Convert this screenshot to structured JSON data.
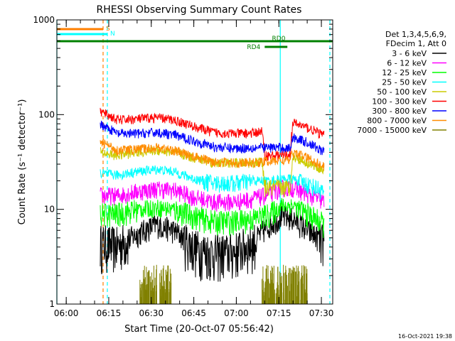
{
  "chart_data": {
    "type": "line",
    "title": "RHESSI Observing Summary Count Rates",
    "xlabel": "Start Time (20-Oct-07 05:56:42)",
    "ylabel": "Count Rate (s⁻¹ detector⁻¹)",
    "yscale": "log",
    "ylim": [
      1,
      1000
    ],
    "xlim": [
      "05:56:42",
      "07:34:00"
    ],
    "x_ticks": [
      "06:00",
      "06:15",
      "06:30",
      "06:45",
      "07:00",
      "07:15",
      "07:30"
    ],
    "y_ticks": [
      "1",
      "10",
      "100",
      "1000"
    ],
    "footer": "16-Oct-2021 19:38",
    "legend": {
      "header": [
        "Det 1,3,4,5,6,9,",
        "FDecim 1, Att 0"
      ],
      "placement": "right"
    },
    "series": [
      {
        "name": "3 - 6 keV",
        "color": "#000000",
        "points": [
          [
            "06:12",
            4.5
          ],
          [
            "06:18",
            4.2
          ],
          [
            "06:25",
            5.5
          ],
          [
            "06:32",
            7
          ],
          [
            "06:38",
            6
          ],
          [
            "06:45",
            4
          ],
          [
            "06:52",
            3.5
          ],
          [
            "06:59",
            3.6
          ],
          [
            "07:06",
            4.5
          ],
          [
            "07:12",
            7
          ],
          [
            "07:16",
            8.5
          ],
          [
            "07:20",
            8
          ],
          [
            "07:25",
            6
          ],
          [
            "07:31",
            4.5
          ]
        ]
      },
      {
        "name": "6 - 12 keV",
        "color": "#ff00ff",
        "points": [
          [
            "06:12",
            14
          ],
          [
            "06:18",
            14
          ],
          [
            "06:25",
            15.5
          ],
          [
            "06:32",
            16.5
          ],
          [
            "06:38",
            16
          ],
          [
            "06:45",
            13.5
          ],
          [
            "06:52",
            12
          ],
          [
            "06:59",
            12
          ],
          [
            "07:06",
            13
          ],
          [
            "07:12",
            14.5
          ],
          [
            "07:16",
            17
          ],
          [
            "07:20",
            17
          ],
          [
            "07:25",
            14.5
          ],
          [
            "07:31",
            12
          ]
        ]
      },
      {
        "name": "12 - 25 keV",
        "color": "#00ff00",
        "points": [
          [
            "06:12",
            9
          ],
          [
            "06:18",
            9
          ],
          [
            "06:25",
            10
          ],
          [
            "06:32",
            10.5
          ],
          [
            "06:38",
            10
          ],
          [
            "06:45",
            8.5
          ],
          [
            "06:52",
            7.5
          ],
          [
            "06:59",
            7.5
          ],
          [
            "07:06",
            8
          ],
          [
            "07:12",
            9
          ],
          [
            "07:16",
            11
          ],
          [
            "07:20",
            11
          ],
          [
            "07:25",
            9
          ],
          [
            "07:31",
            7
          ]
        ]
      },
      {
        "name": "25 - 50 keV",
        "color": "#00ffff",
        "points": [
          [
            "06:12",
            24
          ],
          [
            "06:18",
            23
          ],
          [
            "06:25",
            25
          ],
          [
            "06:32",
            26.5
          ],
          [
            "06:38",
            25
          ],
          [
            "06:45",
            21
          ],
          [
            "06:52",
            19
          ],
          [
            "06:59",
            19
          ],
          [
            "07:06",
            20
          ],
          [
            "07:12",
            20
          ],
          [
            "07:16",
            21
          ],
          [
            "07:20",
            21
          ],
          [
            "07:25",
            18.5
          ],
          [
            "07:31",
            15.5
          ]
        ]
      },
      {
        "name": "50 - 100 keV",
        "color": "#cccc00",
        "points": [
          [
            "06:12",
            40
          ],
          [
            "06:18",
            37
          ],
          [
            "06:25",
            40
          ],
          [
            "06:32",
            42
          ],
          [
            "06:38",
            40
          ],
          [
            "06:45",
            35
          ],
          [
            "06:52",
            31
          ],
          [
            "06:59",
            31
          ],
          [
            "07:06",
            31
          ],
          [
            "07:09",
            32
          ],
          [
            "07:10",
            17
          ],
          [
            "07:16",
            17
          ],
          [
            "07:19",
            17
          ],
          [
            "07:20",
            36
          ],
          [
            "07:25",
            31
          ],
          [
            "07:31",
            26
          ]
        ]
      },
      {
        "name": "100 - 300 keV",
        "color": "#ff0000",
        "points": [
          [
            "06:12",
            108
          ],
          [
            "06:18",
            88
          ],
          [
            "06:25",
            90
          ],
          [
            "06:32",
            93
          ],
          [
            "06:38",
            88
          ],
          [
            "06:45",
            75
          ],
          [
            "06:52",
            65
          ],
          [
            "06:59",
            63
          ],
          [
            "07:06",
            64
          ],
          [
            "07:09",
            67
          ],
          [
            "07:10",
            37
          ],
          [
            "07:16",
            37
          ],
          [
            "07:19",
            38
          ],
          [
            "07:20",
            82
          ],
          [
            "07:25",
            73
          ],
          [
            "07:31",
            60
          ]
        ]
      },
      {
        "name": "300 - 800 keV",
        "color": "#0000ff",
        "points": [
          [
            "06:12",
            80
          ],
          [
            "06:18",
            63
          ],
          [
            "06:25",
            63
          ],
          [
            "06:32",
            65
          ],
          [
            "06:38",
            61
          ],
          [
            "06:45",
            53
          ],
          [
            "06:52",
            46
          ],
          [
            "06:59",
            44
          ],
          [
            "07:06",
            45
          ],
          [
            "07:10",
            45
          ],
          [
            "07:16",
            45
          ],
          [
            "07:19",
            44
          ],
          [
            "07:20",
            58
          ],
          [
            "07:25",
            51
          ],
          [
            "07:31",
            40
          ]
        ]
      },
      {
        "name": "800 - 7000 keV",
        "color": "#ff8c00",
        "points": [
          [
            "06:12",
            52
          ],
          [
            "06:18",
            42
          ],
          [
            "06:25",
            43
          ],
          [
            "06:32",
            45
          ],
          [
            "06:38",
            42
          ],
          [
            "06:45",
            36
          ],
          [
            "06:52",
            32
          ],
          [
            "06:59",
            31
          ],
          [
            "07:06",
            31
          ],
          [
            "07:10",
            32
          ],
          [
            "07:16",
            33
          ],
          [
            "07:19",
            33
          ],
          [
            "07:20",
            40
          ],
          [
            "07:25",
            35
          ],
          [
            "07:31",
            28
          ]
        ]
      },
      {
        "name": "7000 - 15000 keV",
        "color": "#808000",
        "bursts": [
          [
            "06:26",
            "06:32"
          ],
          [
            "06:33",
            "06:37"
          ],
          [
            "07:09",
            "07:25"
          ]
        ]
      }
    ],
    "overlays": [
      {
        "label": "S",
        "color": "#ff7f00",
        "from": "05:56:42",
        "to": "06:13:00",
        "level": 1
      },
      {
        "label": "N",
        "color": "#00ffff",
        "from": "05:56:42",
        "to": "06:14:30",
        "level": 2
      },
      {
        "label": "RD0",
        "color": "#008000",
        "from": "05:56:42",
        "to": "07:34:00",
        "level": 3
      },
      {
        "label": "RD4",
        "color": "#008000",
        "from": "07:10:00",
        "to": "07:18:00",
        "level": 4
      }
    ],
    "vertical_markers": [
      {
        "time": "05:56:42",
        "color": "#00ffff",
        "style": "solid"
      },
      {
        "time": "06:13:00",
        "color": "#ff7f00",
        "style": "dashed"
      },
      {
        "time": "06:14:30",
        "color": "#00ffff",
        "style": "dashed"
      },
      {
        "time": "07:15:30",
        "color": "#00ffff",
        "style": "solid"
      },
      {
        "time": "07:33:00",
        "color": "#00ffff",
        "style": "dashed"
      }
    ]
  }
}
